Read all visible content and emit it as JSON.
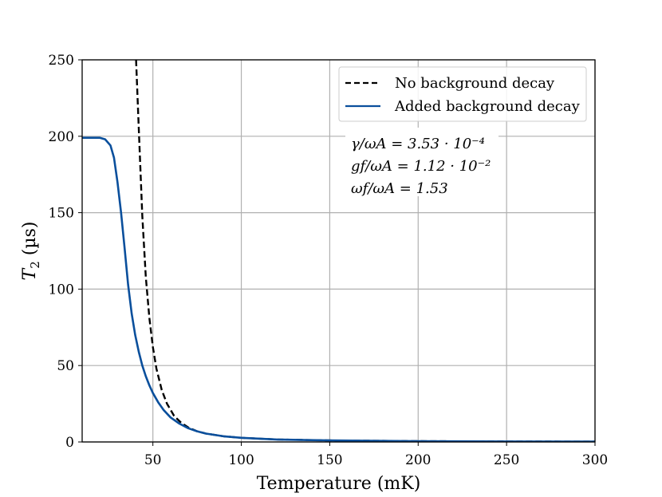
{
  "chart_data": {
    "type": "line",
    "title": "",
    "xlabel": "Temperature (mK)",
    "ylabel": "T2 (µs)",
    "ylabel_symbol": "T",
    "ylabel_subscript": "2",
    "ylabel_unit": " (µs)",
    "xlim": [
      10,
      300
    ],
    "ylim": [
      0,
      250
    ],
    "xticks": [
      50,
      100,
      150,
      200,
      250,
      300
    ],
    "yticks": [
      0,
      50,
      100,
      150,
      200,
      250
    ],
    "grid": true,
    "legend_position": "top-right",
    "series": [
      {
        "name": "No background decay",
        "style": "dashed",
        "color": "#000000",
        "x": [
          40.5,
          42,
          44,
          46,
          48,
          50,
          52,
          55,
          58,
          62,
          66,
          70,
          75,
          80,
          90,
          100,
          120,
          150,
          200,
          250,
          300
        ],
        "y": [
          250,
          205,
          148,
          108,
          81,
          62,
          48,
          34,
          25,
          17,
          12.5,
          9.5,
          7,
          5.5,
          3.7,
          2.7,
          1.6,
          1.0,
          0.5,
          0.3,
          0.2
        ]
      },
      {
        "name": "Added background decay",
        "style": "solid",
        "color": "#0a4f9c",
        "x": [
          10,
          15,
          20,
          23,
          26,
          28,
          30,
          32,
          34,
          36,
          38,
          40,
          42,
          44,
          46,
          48,
          50,
          53,
          56,
          60,
          65,
          70,
          75,
          80,
          90,
          100,
          120,
          150,
          200,
          250,
          300
        ],
        "y": [
          199,
          199,
          199,
          198,
          194,
          186,
          170,
          150,
          127,
          103,
          84,
          70,
          59,
          50,
          43,
          37,
          32,
          26,
          21,
          16,
          12,
          9,
          7,
          5.5,
          3.7,
          2.7,
          1.6,
          1.0,
          0.5,
          0.3,
          0.2
        ]
      }
    ],
    "legend": [
      {
        "label": "No background decay",
        "style": "dashed",
        "color": "#000000"
      },
      {
        "label": "Added background decay",
        "style": "solid",
        "color": "#0a4f9c"
      }
    ],
    "annotations": [
      "γ/ωA = 3.53 · 10⁻⁴",
      "gf/ωA = 1.12 · 10⁻²",
      "ωf/ωA = 1.53"
    ]
  }
}
